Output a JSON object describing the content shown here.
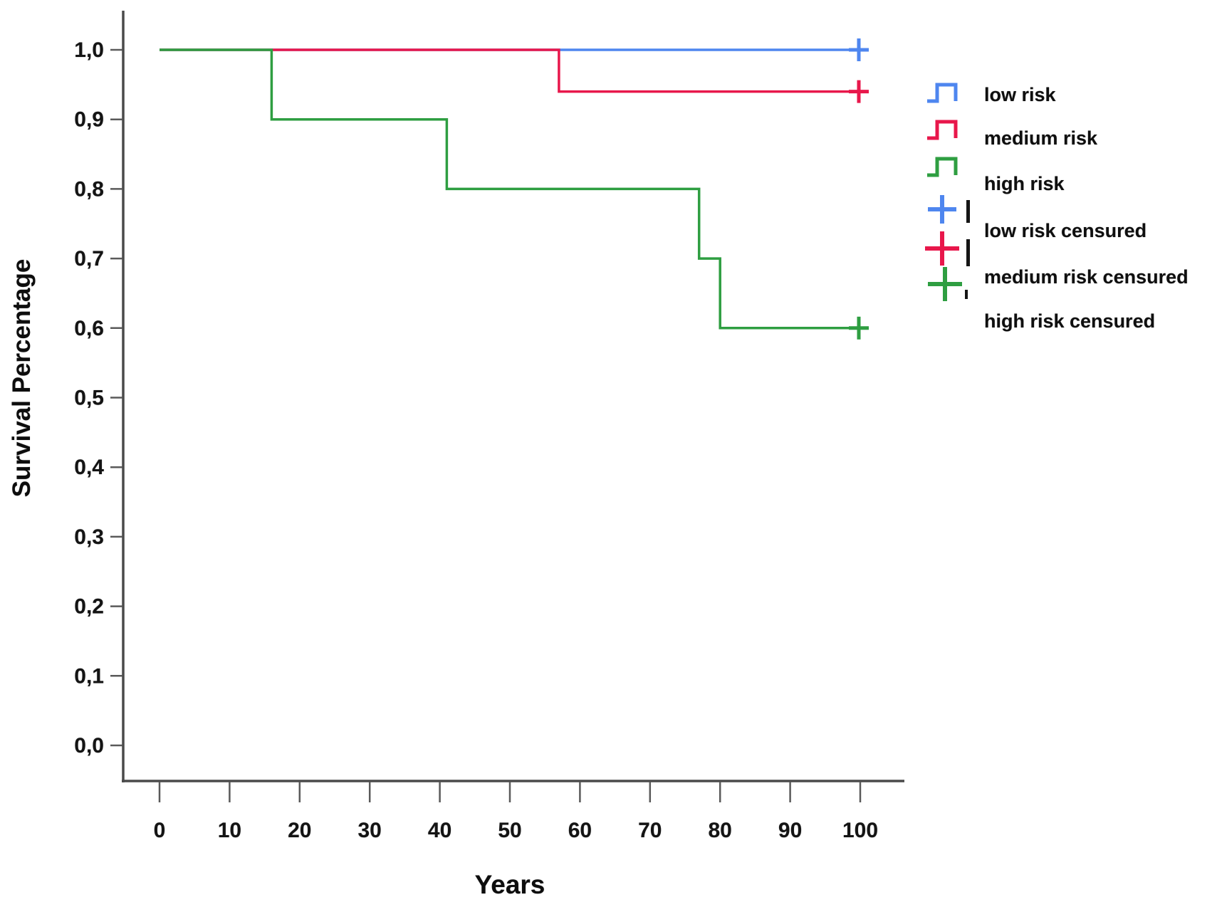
{
  "axes": {
    "y_title": "Survival Percentage",
    "x_title": "Years"
  },
  "chart_data": {
    "type": "line",
    "subtype": "kaplan-meier-step",
    "title": "",
    "xlabel": "Years",
    "ylabel": "Survival Percentage",
    "xlim": [
      0,
      100
    ],
    "ylim": [
      0.0,
      1.0
    ],
    "grid": false,
    "legend_position": "right",
    "decimal_separator": ",",
    "x_ticks": [
      {
        "value": 0,
        "label": "0"
      },
      {
        "value": 10,
        "label": "10"
      },
      {
        "value": 20,
        "label": "20"
      },
      {
        "value": 30,
        "label": "30"
      },
      {
        "value": 40,
        "label": "40"
      },
      {
        "value": 50,
        "label": "50"
      },
      {
        "value": 60,
        "label": "60"
      },
      {
        "value": 70,
        "label": "70"
      },
      {
        "value": 80,
        "label": "80"
      },
      {
        "value": 90,
        "label": "90"
      },
      {
        "value": 100,
        "label": "100"
      }
    ],
    "y_ticks": [
      {
        "value": 1.0,
        "label": "1,0"
      },
      {
        "value": 0.9,
        "label": "0,9"
      },
      {
        "value": 0.8,
        "label": "0,8"
      },
      {
        "value": 0.7,
        "label": "0,7"
      },
      {
        "value": 0.6,
        "label": "0,6"
      },
      {
        "value": 0.5,
        "label": "0,5"
      },
      {
        "value": 0.4,
        "label": "0,4"
      },
      {
        "value": 0.3,
        "label": "0,3"
      },
      {
        "value": 0.2,
        "label": "0,2"
      },
      {
        "value": 0.1,
        "label": "0,1"
      },
      {
        "value": 0.0,
        "label": "0,0"
      }
    ],
    "series": [
      {
        "name": "low risk",
        "color": "#4e86ef",
        "points": [
          [
            0,
            1.0
          ],
          [
            100,
            1.0
          ]
        ],
        "censored": [
          [
            100,
            1.0
          ]
        ]
      },
      {
        "name": "medium risk",
        "color": "#e8174b",
        "points": [
          [
            0,
            1.0
          ],
          [
            57,
            1.0
          ],
          [
            57,
            0.94
          ],
          [
            100,
            0.94
          ]
        ],
        "censored": [
          [
            100,
            0.94
          ]
        ]
      },
      {
        "name": "high risk",
        "color": "#2e9e41",
        "points": [
          [
            0,
            1.0
          ],
          [
            16,
            1.0
          ],
          [
            16,
            0.9
          ],
          [
            41,
            0.9
          ],
          [
            41,
            0.8
          ],
          [
            77,
            0.8
          ],
          [
            77,
            0.7
          ],
          [
            80,
            0.7
          ],
          [
            80,
            0.6
          ],
          [
            100,
            0.6
          ]
        ],
        "censored": [
          [
            100,
            0.6
          ]
        ]
      }
    ]
  },
  "legend": {
    "items": [
      {
        "label": "low risk",
        "color": "#4e86ef",
        "glyph": "step"
      },
      {
        "label": "medium risk",
        "color": "#e8174b",
        "glyph": "step"
      },
      {
        "label": "high risk",
        "color": "#2e9e41",
        "glyph": "step"
      },
      {
        "label": "low risk censured",
        "color": "#4e86ef",
        "glyph": "plus"
      },
      {
        "label": "medium risk censured",
        "color": "#e8174b",
        "glyph": "plus"
      },
      {
        "label": "high risk censured",
        "color": "#2e9e41",
        "glyph": "plus"
      }
    ]
  }
}
